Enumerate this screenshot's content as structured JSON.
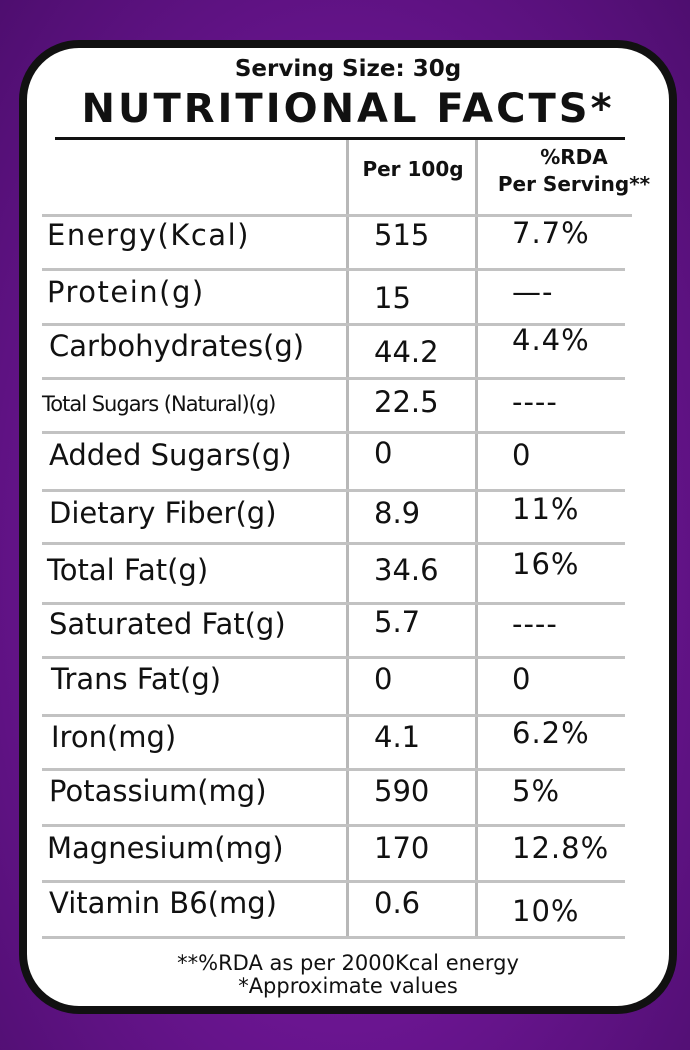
{
  "label": {
    "serving_size": "Serving Size: 30g",
    "title": "NUTRITIONAL FACTS*",
    "headers": {
      "per_100g": "Per 100g",
      "rda_line1": "%RDA",
      "rda_line2": "Per Serving**"
    },
    "rows": [
      {
        "name": "Energy(Kcal)",
        "per100": "515",
        "rda": "7.7%"
      },
      {
        "name": "Protein(g)",
        "per100": "15",
        "rda": "—-"
      },
      {
        "name": "Carbohydrates(g)",
        "per100": "44.2",
        "rda": "4.4%"
      },
      {
        "name": "Total Sugars (Natural)(g)",
        "per100": "22.5",
        "rda": "----"
      },
      {
        "name": "Added Sugars(g)",
        "per100": "0",
        "rda": "0"
      },
      {
        "name": "Dietary Fiber(g)",
        "per100": "8.9",
        "rda": "11%"
      },
      {
        "name": "Total Fat(g)",
        "per100": "34.6",
        "rda": "16%"
      },
      {
        "name": "Saturated Fat(g)",
        "per100": "5.7",
        "rda": "----"
      },
      {
        "name": "Trans Fat(g)",
        "per100": "0",
        "rda": "0"
      },
      {
        "name": "Iron(mg)",
        "per100": "4.1",
        "rda": "6.2%"
      },
      {
        "name": "Potassium(mg)",
        "per100": "590",
        "rda": "5%"
      },
      {
        "name": "Magnesium(mg)",
        "per100": "170",
        "rda": "12.8%"
      },
      {
        "name": "Vitamin B6(mg)",
        "per100": "0.6",
        "rda": "10%"
      }
    ],
    "footer": {
      "rda_note": "**%RDA as per 2000Kcal energy",
      "approx_note": "*Approximate values"
    }
  },
  "colors": {
    "background": "#6a1590",
    "border": "#111111",
    "grid": "#c2c2c2"
  }
}
